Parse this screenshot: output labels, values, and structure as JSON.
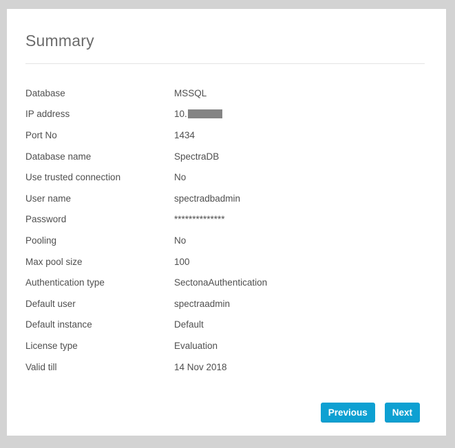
{
  "page": {
    "title": "Summary",
    "background_color": "#d3d3d3",
    "accent_color": "#0da0d2",
    "redaction_color": "#848484"
  },
  "summary": {
    "rows": [
      {
        "label": "Database",
        "value": "MSSQL"
      },
      {
        "label": "IP address",
        "value": "10.",
        "redacted": true
      },
      {
        "label": "Port No",
        "value": "1434"
      },
      {
        "label": "Database name",
        "value": "SpectraDB"
      },
      {
        "label": "Use trusted connection",
        "value": "No"
      },
      {
        "label": "User name",
        "value": "spectradbadmin"
      },
      {
        "label": "Password",
        "value": "**************"
      },
      {
        "label": "Pooling",
        "value": "No"
      },
      {
        "label": "Max pool size",
        "value": "100"
      },
      {
        "label": "Authentication type",
        "value": "SectonaAuthentication"
      },
      {
        "label": "Default user",
        "value": "spectraadmin"
      },
      {
        "label": "Default instance",
        "value": "Default"
      },
      {
        "label": "License type",
        "value": "Evaluation"
      },
      {
        "label": "Valid till",
        "value": "14 Nov 2018"
      }
    ]
  },
  "buttons": {
    "previous": "Previous",
    "next": "Next"
  }
}
